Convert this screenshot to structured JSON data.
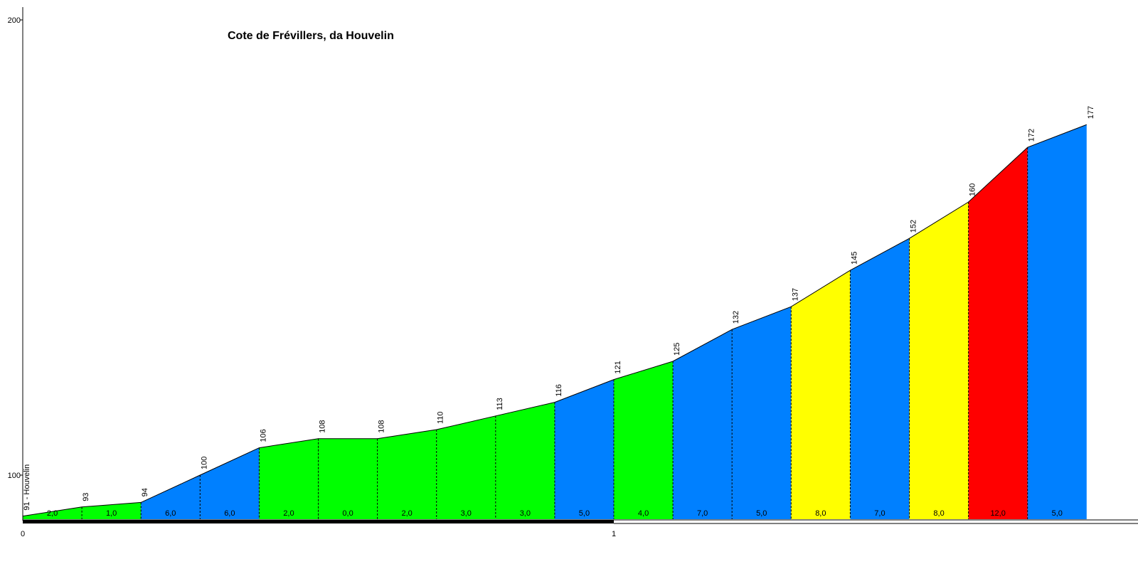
{
  "chart_data": {
    "type": "area",
    "title": "Cote de Frévillers, da Houvelin",
    "xlabel": "",
    "ylabel": "",
    "xlim": [
      0,
      1.9
    ],
    "ylim": [
      90,
      200
    ],
    "y_ticks": [
      "100",
      "200"
    ],
    "x_ticks": [
      "0",
      "1"
    ],
    "start_label": "91 - Houvelin",
    "points": [
      {
        "x": 0.0,
        "y": 91,
        "label": "91 - Houvelin"
      },
      {
        "x": 0.1,
        "y": 93,
        "label": "93"
      },
      {
        "x": 0.2,
        "y": 94,
        "label": "94"
      },
      {
        "x": 0.3,
        "y": 100,
        "label": "100"
      },
      {
        "x": 0.4,
        "y": 106,
        "label": "106"
      },
      {
        "x": 0.5,
        "y": 108,
        "label": "108"
      },
      {
        "x": 0.6,
        "y": 108,
        "label": "108"
      },
      {
        "x": 0.7,
        "y": 110,
        "label": "110"
      },
      {
        "x": 0.8,
        "y": 113,
        "label": "113"
      },
      {
        "x": 0.9,
        "y": 116,
        "label": "116"
      },
      {
        "x": 1.0,
        "y": 121,
        "label": "121"
      },
      {
        "x": 1.1,
        "y": 125,
        "label": "125"
      },
      {
        "x": 1.2,
        "y": 132,
        "label": "132"
      },
      {
        "x": 1.3,
        "y": 137,
        "label": "137"
      },
      {
        "x": 1.4,
        "y": 145,
        "label": "145"
      },
      {
        "x": 1.5,
        "y": 152,
        "label": "152"
      },
      {
        "x": 1.6,
        "y": 160,
        "label": "160"
      },
      {
        "x": 1.7,
        "y": 172,
        "label": "172"
      },
      {
        "x": 1.8,
        "y": 177,
        "label": "177"
      }
    ],
    "gradients": [
      "2,0",
      "1,0",
      "6,0",
      "6,0",
      "2,0",
      "0,0",
      "2,0",
      "3,0",
      "3,0",
      "5,0",
      "4,0",
      "7,0",
      "5,0",
      "8,0",
      "7,0",
      "8,0",
      "12,0",
      "5,0"
    ],
    "segment_colors": [
      "#00ff00",
      "#00ff00",
      "#0080ff",
      "#0080ff",
      "#00ff00",
      "#00ff00",
      "#00ff00",
      "#00ff00",
      "#00ff00",
      "#0080ff",
      "#00ff00",
      "#0080ff",
      "#0080ff",
      "#ffff00",
      "#0080ff",
      "#ffff00",
      "#ff0000",
      "#0080ff"
    ]
  }
}
